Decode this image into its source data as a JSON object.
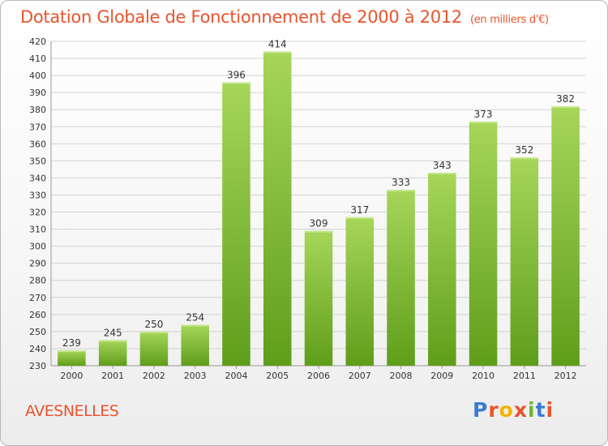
{
  "header": {
    "title": "Dotation Globale de Fonctionnement de 2000 à 2012",
    "unit": "(en milliers d'€)"
  },
  "footer": {
    "commune": "AVESNELLES",
    "logo": {
      "letters": [
        "P",
        "r",
        "o",
        "x",
        "i",
        "t",
        "i"
      ],
      "colors": [
        "#3a7bd5",
        "#e8542e",
        "#f2b400",
        "#e8542e",
        "#6fb532",
        "#3a7bd5",
        "#e8542e"
      ]
    }
  },
  "colors": {
    "title": "#e8542e",
    "bar_light": "#a6d65a",
    "bar_dark": "#5f9e1a",
    "grid": "#d2d2d2",
    "text": "#333333"
  },
  "chart_data": {
    "type": "bar",
    "categories": [
      "2000",
      "2001",
      "2002",
      "2003",
      "2004",
      "2005",
      "2006",
      "2007",
      "2008",
      "2009",
      "2010",
      "2011",
      "2012"
    ],
    "values": [
      239,
      245,
      250,
      254,
      396,
      414,
      309,
      317,
      333,
      343,
      373,
      352,
      382
    ],
    "title": "Dotation Globale de Fonctionnement de 2000 à 2012",
    "ylim": [
      230,
      420
    ],
    "yticks": [
      230,
      240,
      250,
      260,
      270,
      280,
      290,
      300,
      310,
      320,
      330,
      340,
      350,
      360,
      370,
      380,
      390,
      400,
      410,
      420
    ],
    "grid": true,
    "data_labels": true
  }
}
